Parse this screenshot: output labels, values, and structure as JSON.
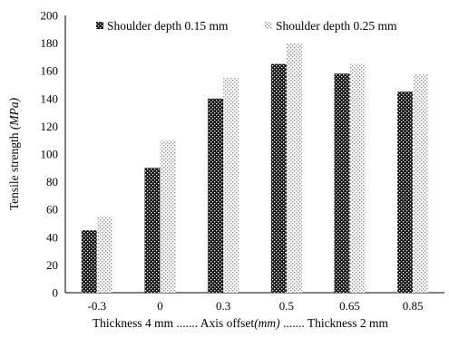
{
  "chart_data": {
    "type": "bar",
    "categories": [
      "-0.3",
      "0",
      "0.3",
      "0.5",
      "0.65",
      "0.85"
    ],
    "series": [
      {
        "name": "Shoulder depth 0.15 mm",
        "values": [
          45,
          90,
          140,
          165,
          158,
          145
        ],
        "pattern": "dark-checker",
        "color": "#111111"
      },
      {
        "name": "Shoulder depth 0.25 mm",
        "values": [
          55,
          110,
          155,
          180,
          165,
          158
        ],
        "pattern": "light-dots",
        "color": "#9a9a9a"
      }
    ],
    "title": "",
    "ylabel": {
      "main": "Tensile strength ",
      "unit": "(MPa)"
    },
    "xlabel": {
      "main": "Thickness 4 mm ....... Axis offset",
      "unit": "(mm)",
      "tail": " ....... Thickness 2 mm"
    },
    "ylim": [
      0,
      200
    ],
    "yticks": [
      0,
      20,
      40,
      60,
      80,
      100,
      120,
      140,
      160,
      180,
      200
    ],
    "grid": false,
    "legend_position": "top"
  }
}
